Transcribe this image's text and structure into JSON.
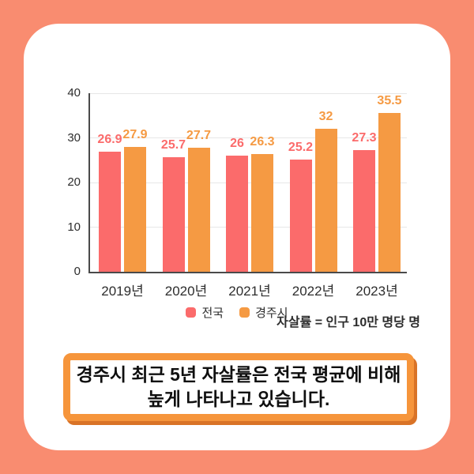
{
  "colors": {
    "background": "#F98C70",
    "card": "#ffffff",
    "axis": "#4a4a4a",
    "gridline": "#e7e7e7",
    "tick_text": "#2d2d2d",
    "caption_border": "#F6953B",
    "caption_shadow": "#D97327",
    "caption_text": "#0f0f0f"
  },
  "chart_data": {
    "type": "bar",
    "title": "",
    "categories": [
      "2019년",
      "2020년",
      "2021년",
      "2022년",
      "2023년"
    ],
    "series": [
      {
        "name": "전국",
        "color": "#FB6B6B",
        "values": [
          26.9,
          25.7,
          26,
          25.2,
          27.3
        ]
      },
      {
        "name": "경주시",
        "color": "#F59A43",
        "values": [
          27.9,
          27.7,
          26.3,
          32,
          35.5
        ]
      }
    ],
    "ylim": [
      0,
      40
    ],
    "yticks": [
      0,
      10,
      20,
      30,
      40
    ],
    "grid": true,
    "legend_position": "bottom",
    "value_labels": true
  },
  "note": "자살률 = 인구 10만 명당 명",
  "caption": {
    "line1": "경주시 최근 5년 자살률은 전국 평균에 비해",
    "line2": "높게 나타나고 있습니다."
  }
}
